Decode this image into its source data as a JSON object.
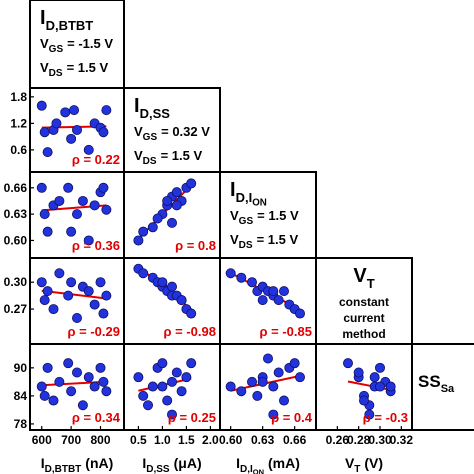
{
  "headers": [
    {
      "title": {
        "main": "I",
        "sub": "D,BTBT"
      },
      "lines": [
        {
          "main": "V",
          "sub": "GS",
          "text": "= -1.5 V"
        },
        {
          "main": "V",
          "sub": "DS",
          "text": "= 1.5 V"
        }
      ]
    },
    {
      "title": {
        "main": "I",
        "sub": "D,SS"
      },
      "lines": [
        {
          "main": "V",
          "sub": "GS",
          "text": "= 0.32 V"
        },
        {
          "main": "V",
          "sub": "DS",
          "text": "= 1.5 V"
        }
      ]
    },
    {
      "title": {
        "main": "I",
        "sub": "D,I",
        "subsub": "ON"
      },
      "lines": [
        {
          "main": "V",
          "sub": "GS",
          "text": "= 1.5 V"
        },
        {
          "main": "V",
          "sub": "DS",
          "text": "= 1.5 V"
        }
      ]
    },
    {
      "title": {
        "main": "V",
        "sub": "T"
      },
      "lines": [
        "constant",
        "current",
        "method"
      ]
    },
    {
      "title": {
        "main": "SS",
        "sub": "Sa"
      }
    }
  ],
  "chart_data": [
    {
      "type": "scatter",
      "color": "#2233dd",
      "fit_color": "#e00000",
      "annotation": "ρ = 0.22",
      "x": [
        600,
        610,
        620,
        640,
        650,
        680,
        700,
        710,
        720,
        760,
        780,
        800,
        810,
        820
      ],
      "values": [
        1.6,
        1.0,
        0.55,
        1.05,
        1.2,
        1.45,
        0.85,
        1.5,
        1.05,
        0.6,
        1.2,
        1.1,
        1.0,
        1.5
      ],
      "xlim": [
        560,
        880
      ],
      "ylim": [
        0.1,
        2.0
      ],
      "yticks": [
        1.8,
        1.2,
        0.6
      ]
    },
    {
      "type": "scatter",
      "color": "#2233dd",
      "fit_color": "#e00000",
      "annotation": "ρ = 0.36",
      "x": [
        600,
        610,
        620,
        640,
        660,
        690,
        700,
        720,
        740,
        760,
        780,
        800,
        810,
        820
      ],
      "values": [
        0.66,
        0.63,
        0.61,
        0.64,
        0.645,
        0.66,
        0.61,
        0.63,
        0.645,
        0.6,
        0.64,
        0.655,
        0.66,
        0.635
      ],
      "xlim": [
        560,
        880
      ],
      "ylim": [
        0.58,
        0.678
      ],
      "yticks": [
        0.66,
        0.63,
        {
          "value": 0.6,
          "label": "0.60"
        }
      ]
    },
    {
      "type": "scatter",
      "color": "#2233dd",
      "fit_color": "#e00000",
      "annotation": "ρ = 0.8",
      "x": [
        0.5,
        0.6,
        0.8,
        1.0,
        1.1,
        1.2,
        1.2,
        1.3,
        1.4,
        1.5,
        1.6,
        1.1,
        0.9,
        1.3
      ],
      "values": [
        0.6,
        0.61,
        0.615,
        0.63,
        0.64,
        0.65,
        0.62,
        0.655,
        0.645,
        0.66,
        0.665,
        0.645,
        0.625,
        0.64
      ],
      "xlim": [
        0.2,
        2.2
      ],
      "ylim": [
        0.58,
        0.678
      ]
    },
    {
      "type": "scatter",
      "color": "#2233dd",
      "fit_color": "#e00000",
      "annotation": "ρ = -0.29",
      "x": [
        600,
        610,
        620,
        640,
        660,
        690,
        700,
        720,
        740,
        760,
        780,
        800,
        810,
        820
      ],
      "values": [
        0.3,
        0.28,
        0.29,
        0.27,
        0.31,
        0.285,
        0.3,
        0.26,
        0.295,
        0.29,
        0.275,
        0.3,
        0.265,
        0.285
      ],
      "xlim": [
        560,
        880
      ],
      "ylim": [
        0.231,
        0.327
      ],
      "yticks": [
        {
          "value": 0.3,
          "label": "0.30"
        },
        0.27
      ]
    },
    {
      "type": "scatter",
      "color": "#2233dd",
      "fit_color": "#e00000",
      "annotation": "ρ = -0.98",
      "x": [
        0.5,
        0.6,
        0.8,
        0.9,
        1.0,
        1.1,
        1.2,
        1.3,
        1.4,
        1.5,
        1.6,
        1.2,
        1.0,
        1.4
      ],
      "values": [
        0.315,
        0.31,
        0.305,
        0.3,
        0.295,
        0.29,
        0.285,
        0.285,
        0.28,
        0.27,
        0.265,
        0.295,
        0.3,
        0.28
      ],
      "xlim": [
        0.2,
        2.2
      ],
      "ylim": [
        0.231,
        0.327
      ]
    },
    {
      "type": "scatter",
      "color": "#2233dd",
      "fit_color": "#e00000",
      "annotation": "ρ = -0.85",
      "x": [
        0.6,
        0.61,
        0.62,
        0.625,
        0.63,
        0.635,
        0.64,
        0.645,
        0.65,
        0.655,
        0.66,
        0.64,
        0.63,
        0.665
      ],
      "values": [
        0.31,
        0.305,
        0.3,
        0.29,
        0.295,
        0.29,
        0.285,
        0.28,
        0.29,
        0.275,
        0.27,
        0.29,
        0.28,
        0.265
      ],
      "xlim": [
        0.59,
        0.68
      ],
      "ylim": [
        0.231,
        0.327
      ]
    },
    {
      "type": "scatter",
      "color": "#2233dd",
      "fit_color": "#e00000",
      "annotation": "ρ = 0.34",
      "x": [
        600,
        610,
        620,
        640,
        660,
        690,
        700,
        720,
        740,
        760,
        780,
        800,
        810,
        820
      ],
      "values": [
        86,
        84,
        90,
        83,
        87,
        91,
        85,
        89,
        82,
        88,
        86,
        90,
        87,
        85
      ],
      "xlim": [
        560,
        880
      ],
      "ylim": [
        76.7,
        95.1
      ],
      "yticks": [
        90,
        84,
        78
      ],
      "xticks": [
        600,
        700,
        800
      ],
      "xlabel": {
        "main": "I",
        "sub": "D,BTBT",
        "unit": "(nA)"
      }
    },
    {
      "type": "scatter",
      "color": "#2233dd",
      "fit_color": "#e00000",
      "annotation": "ρ = 0.25",
      "x": [
        0.5,
        0.6,
        0.8,
        0.9,
        1.0,
        1.1,
        1.2,
        1.3,
        1.4,
        1.5,
        1.6,
        1.2,
        1.0,
        0.7
      ],
      "values": [
        88,
        84,
        86,
        90,
        91,
        83,
        87,
        89,
        85,
        88,
        91,
        80,
        86,
        82
      ],
      "xlim": [
        0.2,
        2.2
      ],
      "ylim": [
        76.7,
        95.1
      ],
      "xticks": [
        0.5,
        {
          "value": 1,
          "label": "1.0"
        },
        1.5,
        {
          "value": 2,
          "label": "2.0"
        }
      ],
      "xlabel": {
        "main": "I",
        "sub": "D,SS",
        "unit": "(μA)"
      }
    },
    {
      "type": "scatter",
      "color": "#2233dd",
      "fit_color": "#e00000",
      "annotation": "ρ = 0.4",
      "x": [
        0.6,
        0.61,
        0.62,
        0.625,
        0.63,
        0.635,
        0.64,
        0.645,
        0.65,
        0.655,
        0.66,
        0.64,
        0.63,
        0.665
      ],
      "values": [
        86,
        85,
        87,
        84,
        88,
        92,
        86,
        89,
        83,
        90,
        91,
        80,
        87,
        88
      ],
      "xlim": [
        0.59,
        0.68
      ],
      "ylim": [
        76.7,
        95.1
      ],
      "xticks": [
        {
          "value": 0.6,
          "label": "0.60"
        },
        0.63,
        0.66
      ],
      "xlabel": {
        "main": "I",
        "sub": "D,I",
        "subsub": "ON",
        "unit": "(mA)"
      }
    },
    {
      "type": "scatter",
      "color": "#2233dd",
      "fit_color": "#e00000",
      "annotation": "ρ = -0.3",
      "x": [
        0.27,
        0.28,
        0.285,
        0.29,
        0.295,
        0.3,
        0.305,
        0.31,
        0.28,
        0.29,
        0.3,
        0.295,
        0.285,
        0.31
      ],
      "values": [
        91,
        88,
        84,
        80,
        86,
        90,
        87,
        85,
        89,
        82,
        86,
        88,
        83,
        86
      ],
      "xlim": [
        0.24,
        0.33
      ],
      "ylim": [
        76.7,
        95.1
      ],
      "xticks": [
        0.26,
        0.28,
        {
          "value": 0.3,
          "label": "0.30"
        },
        0.32
      ],
      "xlabel": {
        "main": "V",
        "sub": "T",
        "unit": "(V)"
      }
    }
  ]
}
